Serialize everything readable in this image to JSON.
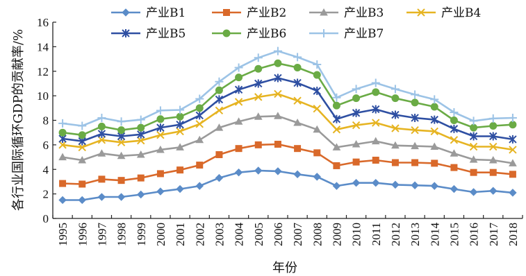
{
  "chart_data": {
    "type": "line",
    "title": "",
    "xlabel": "年份",
    "ylabel": "各行业国际循环GDP的贡献率/%",
    "ylim": [
      0,
      16
    ],
    "yticks": [
      0,
      2,
      4,
      6,
      8,
      10,
      12,
      14,
      16
    ],
    "grid": false,
    "legend_position": "top",
    "categories": [
      "1995",
      "1996",
      "1997",
      "1998",
      "1999",
      "2000",
      "2001",
      "2002",
      "2003",
      "2004",
      "2005",
      "2006",
      "2007",
      "2008",
      "2009",
      "2010",
      "2011",
      "2012",
      "2013",
      "2014",
      "2015",
      "2016",
      "2017",
      "2018"
    ],
    "series": [
      {
        "name": "产业B1",
        "color": "#5b8cc8",
        "marker": "diamond",
        "values": [
          1.5,
          1.5,
          1.75,
          1.75,
          1.95,
          2.2,
          2.4,
          2.65,
          3.3,
          3.75,
          3.9,
          3.85,
          3.6,
          3.4,
          2.65,
          2.9,
          2.9,
          2.75,
          2.7,
          2.65,
          2.4,
          2.15,
          2.25,
          2.1
        ]
      },
      {
        "name": "产业B2",
        "color": "#d9692a",
        "marker": "square",
        "values": [
          2.85,
          2.8,
          3.2,
          3.1,
          3.3,
          3.65,
          3.95,
          4.35,
          5.2,
          5.7,
          6.0,
          6.05,
          5.7,
          5.35,
          4.3,
          4.6,
          4.75,
          4.55,
          4.55,
          4.5,
          4.15,
          3.75,
          3.75,
          3.6
        ]
      },
      {
        "name": "产业B3",
        "color": "#9a9a9a",
        "marker": "triangle",
        "values": [
          5.0,
          4.75,
          5.3,
          5.1,
          5.2,
          5.6,
          5.8,
          6.4,
          7.4,
          7.9,
          8.3,
          8.35,
          7.8,
          7.25,
          5.8,
          6.05,
          6.3,
          5.95,
          5.9,
          5.85,
          5.3,
          4.8,
          4.75,
          4.5
        ]
      },
      {
        "name": "产业B4",
        "color": "#e6b422",
        "marker": "x",
        "values": [
          6.0,
          5.8,
          6.4,
          6.2,
          6.35,
          6.8,
          7.1,
          7.7,
          8.8,
          9.5,
          9.9,
          10.15,
          9.6,
          8.95,
          7.25,
          7.6,
          7.8,
          7.35,
          7.2,
          7.1,
          6.4,
          5.85,
          5.85,
          5.6
        ]
      },
      {
        "name": "产业B5",
        "color": "#2e4fa2",
        "marker": "star",
        "values": [
          6.5,
          6.3,
          6.9,
          6.7,
          6.85,
          7.4,
          7.65,
          8.4,
          9.7,
          10.5,
          11.0,
          11.45,
          11.05,
          10.4,
          8.1,
          8.6,
          8.9,
          8.45,
          8.2,
          8.05,
          7.3,
          6.7,
          6.7,
          6.45
        ]
      },
      {
        "name": "产业B6",
        "color": "#6aab45",
        "marker": "circle",
        "values": [
          7.0,
          6.8,
          7.5,
          7.2,
          7.4,
          8.1,
          8.3,
          9.0,
          10.45,
          11.5,
          12.2,
          12.65,
          12.3,
          11.7,
          9.2,
          9.8,
          10.3,
          9.8,
          9.45,
          9.1,
          8.0,
          7.4,
          7.55,
          7.65
        ]
      },
      {
        "name": "产业B7",
        "color": "#9cc3e6",
        "marker": "plus",
        "values": [
          7.75,
          7.55,
          8.2,
          7.9,
          8.05,
          8.8,
          8.85,
          9.75,
          11.15,
          12.3,
          13.1,
          13.65,
          13.15,
          12.55,
          9.85,
          10.55,
          11.05,
          10.55,
          10.1,
          9.7,
          8.65,
          7.95,
          8.15,
          8.2
        ]
      }
    ]
  }
}
